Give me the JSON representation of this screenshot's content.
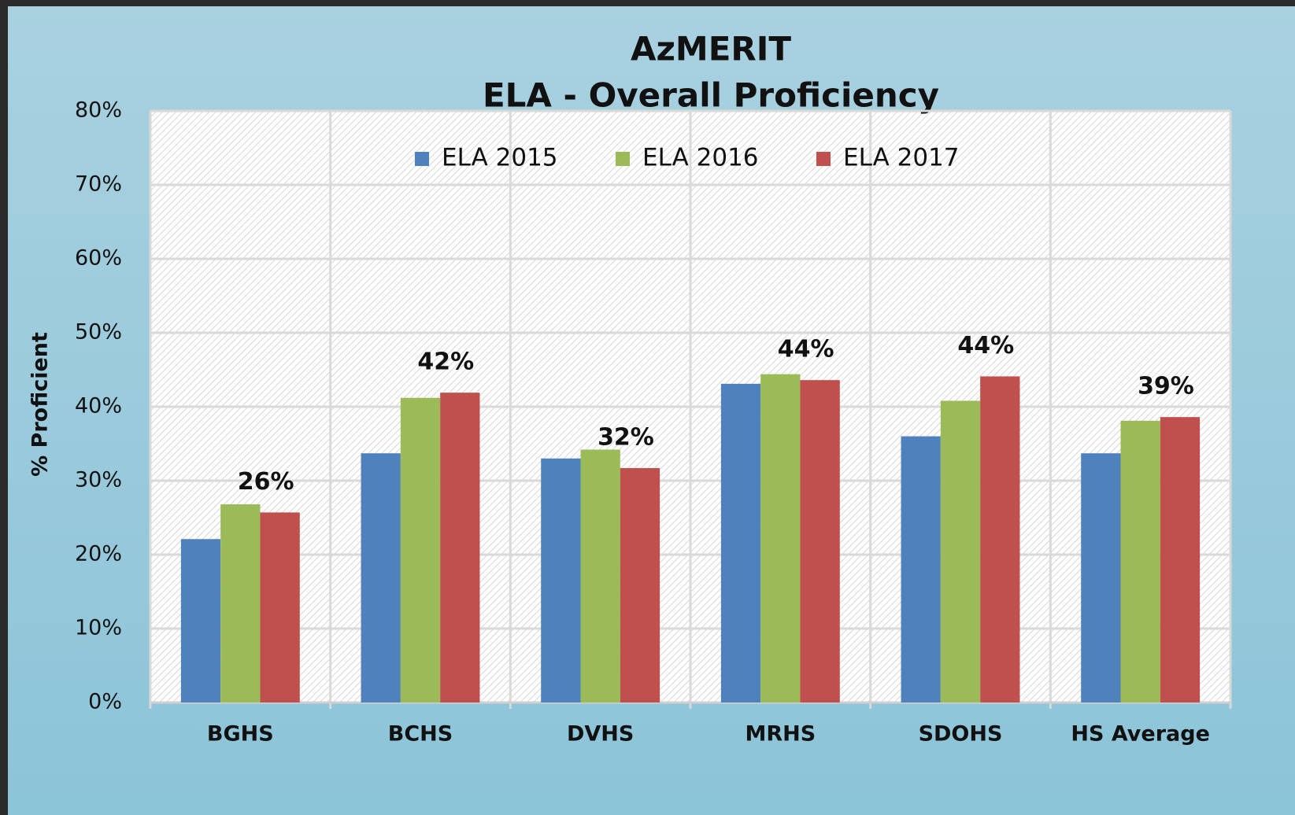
{
  "chart_data": {
    "type": "bar",
    "title": "AzMERIT",
    "subtitle": "ELA - Overall Proficiency",
    "y_label": "% Proficient",
    "categories": [
      "BGHS",
      "BCHS",
      "DVHS",
      "MRHS",
      "SDOHS",
      "HS Average"
    ],
    "series": [
      {
        "name": "ELA 2015",
        "color": "#4f81bd",
        "values": [
          22.1,
          33.7,
          33.0,
          43.1,
          36.0,
          33.7
        ]
      },
      {
        "name": "ELA 2016",
        "color": "#9bbb59",
        "values": [
          26.8,
          41.2,
          34.2,
          44.4,
          40.8,
          38.1
        ]
      },
      {
        "name": "ELA 2017",
        "color": "#c0504d",
        "values": [
          25.7,
          41.9,
          31.7,
          43.6,
          44.1,
          38.6
        ],
        "value_labels": [
          "26%",
          "42%",
          "32%",
          "44%",
          "44%",
          "39%"
        ]
      }
    ],
    "ylim": [
      0,
      80
    ],
    "yticks": [
      {
        "value": 0,
        "label": "0%"
      },
      {
        "value": 10,
        "label": "10%"
      },
      {
        "value": 20,
        "label": "20%"
      },
      {
        "value": 30,
        "label": "30%"
      },
      {
        "value": 40,
        "label": "40%"
      },
      {
        "value": 50,
        "label": "50%"
      },
      {
        "value": 60,
        "label": "60%"
      },
      {
        "value": 70,
        "label": "70%"
      },
      {
        "value": 80,
        "label": "80%"
      }
    ],
    "grid": true,
    "legend": "top"
  }
}
